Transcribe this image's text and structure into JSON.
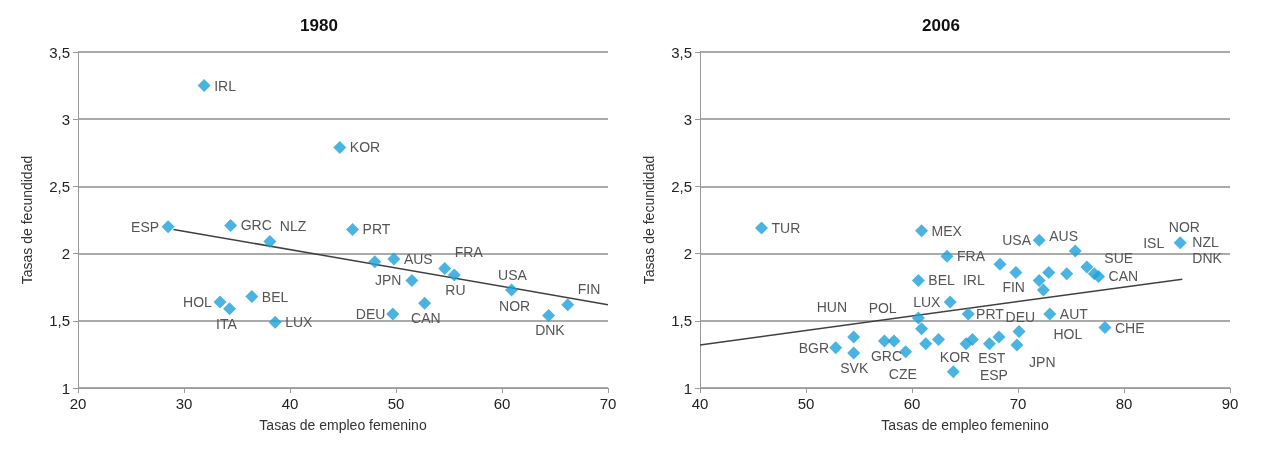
{
  "chart_data": [
    {
      "type": "scatter",
      "title": "1980",
      "xlabel": "Tasas de empleo femenino",
      "ylabel": "Tasas de fecundidad",
      "xlim": [
        20,
        70
      ],
      "xticks": [
        20,
        30,
        40,
        50,
        60,
        70
      ],
      "ylim": [
        1,
        3.5
      ],
      "yticks": [
        1,
        {
          "value": 1.5,
          "label": "1,5"
        },
        2,
        {
          "value": 2.5,
          "label": "2,5"
        },
        3,
        {
          "value": 3.5,
          "label": "3,5"
        }
      ],
      "grid": "y",
      "series": [
        {
          "marker": "diamond",
          "color": "#1ba1d9",
          "x": [
            31.9,
            44.7,
            28.5,
            34.4,
            38.1,
            45.9,
            48.0,
            49.8,
            54.6,
            55.5,
            51.5,
            52.7,
            49.7,
            60.9,
            64.4,
            66.2,
            33.4,
            34.3,
            36.4,
            38.6
          ],
          "values": [
            3.25,
            2.79,
            2.2,
            2.21,
            2.09,
            2.18,
            1.94,
            1.96,
            1.89,
            1.84,
            1.8,
            1.63,
            1.55,
            1.73,
            1.54,
            1.62,
            1.64,
            1.59,
            1.68,
            1.49
          ]
        },
        {
          "type": "line",
          "color": "#404040",
          "x": [
            29.0,
            70
          ],
          "values": [
            2.18,
            1.62
          ]
        }
      ],
      "annotations": [
        {
          "text": "IRL",
          "x": 31.9,
          "y": 3.25
        },
        {
          "text": "KOR",
          "x": 44.7,
          "y": 2.79
        },
        {
          "text": "ESP",
          "x": 28.5,
          "y": 2.2
        },
        {
          "text": "GRC",
          "x": 34.4,
          "y": 2.21
        },
        {
          "text": "NLZ",
          "x": 38.1,
          "y": 2.09
        },
        {
          "text": "PRT",
          "x": 45.9,
          "y": 2.18
        },
        {
          "text": "AUS",
          "x": 49.8,
          "y": 1.96
        },
        {
          "text": "FRA",
          "x": 54.6,
          "y": 1.89
        },
        {
          "text": "RU",
          "x": 55.5,
          "y": 1.84
        },
        {
          "text": "JPN",
          "x": 51.5,
          "y": 1.8
        },
        {
          "text": "CAN",
          "x": 52.7,
          "y": 1.63
        },
        {
          "text": "DEU",
          "x": 49.7,
          "y": 1.55
        },
        {
          "text": "USA",
          "x": 60.9,
          "y": 1.73
        },
        {
          "text": "NOR",
          "x": 61.0,
          "y": 1.72
        },
        {
          "text": "DNK",
          "x": 64.4,
          "y": 1.54
        },
        {
          "text": "FIN",
          "x": 66.2,
          "y": 1.62
        },
        {
          "text": "HOL",
          "x": 33.4,
          "y": 1.64
        },
        {
          "text": "ITA",
          "x": 34.3,
          "y": 1.59
        },
        {
          "text": "BEL",
          "x": 36.4,
          "y": 1.68
        },
        {
          "text": "LUX",
          "x": 38.6,
          "y": 1.49
        }
      ]
    },
    {
      "type": "scatter",
      "title": "2006",
      "xlabel": "Tasas de empleo femenino",
      "ylabel": "Tasas de fecundidad",
      "xlim": [
        40,
        90
      ],
      "xticks": [
        40,
        50,
        60,
        70,
        80,
        90
      ],
      "ylim": [
        1,
        3.5
      ],
      "yticks": [
        1,
        {
          "value": 1.5,
          "label": "1,5"
        },
        2,
        {
          "value": 2.5,
          "label": "2,5"
        },
        3,
        {
          "value": 3.5,
          "label": "3,5"
        }
      ],
      "grid": "y",
      "series": [
        {
          "marker": "diamond",
          "color": "#1ba1d9",
          "x": [
            45.8,
            60.9,
            63.3,
            60.6,
            72.0,
            68.3,
            69.8,
            72.0,
            72.9,
            74.6,
            75.4,
            76.5,
            77.2,
            72.4,
            77.6,
            85.3,
            63.6,
            65.3,
            60.6,
            60.9,
            70.1,
            69.9,
            67.3,
            68.2,
            65.1,
            65.7,
            61.3,
            62.5,
            73.0,
            78.2,
            63.9,
            59.4,
            54.5,
            54.5,
            52.8,
            57.4,
            58.3
          ],
          "values": [
            2.19,
            2.17,
            1.98,
            1.8,
            2.1,
            1.92,
            1.86,
            1.8,
            1.86,
            1.85,
            2.02,
            1.9,
            1.85,
            1.73,
            1.83,
            2.08,
            1.64,
            1.55,
            1.52,
            1.44,
            1.42,
            1.32,
            1.33,
            1.38,
            1.33,
            1.36,
            1.33,
            1.36,
            1.55,
            1.45,
            1.12,
            1.27,
            1.26,
            1.38,
            1.3,
            1.35,
            1.35
          ]
        },
        {
          "type": "line",
          "color": "#404040",
          "x": [
            40,
            85.5
          ],
          "values": [
            1.32,
            1.81
          ]
        }
      ],
      "annotations": [
        {
          "text": "TUR",
          "x": 45.8,
          "y": 2.19
        },
        {
          "text": "MEX",
          "x": 60.9,
          "y": 2.17
        },
        {
          "text": "FRA",
          "x": 63.3,
          "y": 1.98
        },
        {
          "text": "BEL",
          "x": 60.6,
          "y": 1.8
        },
        {
          "text": "USA",
          "x": 72.0,
          "y": 2.1
        },
        {
          "text": "IRL",
          "x": 68.3,
          "y": 1.92
        },
        {
          "text": "FIN",
          "x": 69.8,
          "y": 1.86
        },
        {
          "text": "AUS",
          "x": 72.0,
          "y": 1.8
        },
        {
          "text": "SUE",
          "x": 77.2,
          "y": 1.85
        },
        {
          "text": "HOL",
          "x": 72.4,
          "y": 1.73
        },
        {
          "text": "CAN",
          "x": 77.6,
          "y": 1.83
        },
        {
          "text": "NZL",
          "x": 85.5,
          "y": 2.09
        },
        {
          "text": "ISL",
          "x": 85.3,
          "y": 2.08
        },
        {
          "text": "NOR",
          "x": 85.5,
          "y": 2.09
        },
        {
          "text": "DNK",
          "x": 85.5,
          "y": 2.09
        },
        {
          "text": "LUX",
          "x": 63.6,
          "y": 1.64
        },
        {
          "text": "EST",
          "x": 65.3,
          "y": 1.55
        },
        {
          "text": "DEU",
          "x": 70.1,
          "y": 1.42
        },
        {
          "text": "JPN",
          "x": 70.1,
          "y": 1.42
        },
        {
          "text": "ESP",
          "x": 69.9,
          "y": 1.32
        },
        {
          "text": "PRT",
          "x": 65.1,
          "y": 1.33
        },
        {
          "text": "CZE",
          "x": 61.3,
          "y": 1.33
        },
        {
          "text": "AUT",
          "x": 73.0,
          "y": 1.55
        },
        {
          "text": "CHE",
          "x": 78.2,
          "y": 1.45
        },
        {
          "text": "KOR",
          "x": 63.9,
          "y": 1.12
        },
        {
          "text": "POL",
          "x": 59.4,
          "y": 1.27
        },
        {
          "text": "SVK",
          "x": 54.5,
          "y": 1.26
        },
        {
          "text": "HUN",
          "x": 54.5,
          "y": 1.38
        },
        {
          "text": "BGR",
          "x": 52.8,
          "y": 1.3
        },
        {
          "text": "GRC",
          "x": 57.4,
          "y": 1.35
        }
      ]
    }
  ]
}
